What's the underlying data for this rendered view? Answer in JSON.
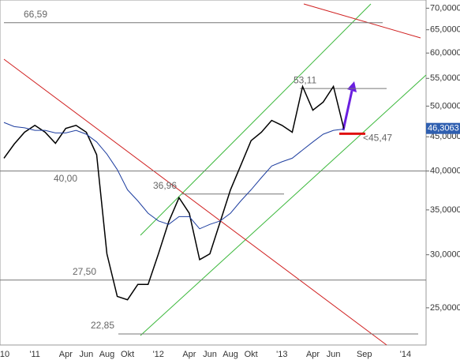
{
  "chart_data": {
    "type": "line",
    "categories": [
      "'10",
      null,
      null,
      "'11",
      null,
      null,
      "Apr",
      null,
      "Jun",
      null,
      "Aug",
      null,
      "Okt",
      null,
      null,
      "'12",
      null,
      null,
      "Apr",
      null,
      "Jun",
      null,
      "Aug",
      null,
      "Okt",
      null,
      null,
      "'13",
      null,
      null,
      "Apr",
      null,
      "Jun",
      null,
      null,
      "Sep",
      null,
      null,
      null,
      "'14"
    ],
    "series": [
      {
        "color": "#000000",
        "values": [
          41800,
          43900,
          45700,
          46800,
          45700,
          44000,
          46300,
          46800,
          45700,
          42300,
          30100,
          26000,
          25700,
          27100,
          27100,
          30100,
          33600,
          36500,
          34600,
          29500,
          30100,
          33600,
          37500,
          40800,
          44400,
          45700,
          47600,
          46800,
          45700,
          53500,
          49300,
          50700,
          53500,
          46300,
          null,
          null,
          null,
          null,
          null,
          null
        ]
      },
      {
        "color": "#1f3fa0",
        "values": [
          47270,
          46600,
          46400,
          46000,
          46000,
          45600,
          45600,
          46000,
          45400,
          44200,
          42400,
          40200,
          37500,
          36100,
          34600,
          33700,
          33300,
          34200,
          34200,
          32800,
          33300,
          33700,
          34600,
          36100,
          37500,
          39100,
          40700,
          41300,
          41800,
          43000,
          44200,
          45400,
          46000,
          46200,
          null,
          null,
          null,
          null,
          null,
          null
        ]
      }
    ],
    "log_scale": true,
    "ylim": [
      22000,
      72000
    ],
    "yticks": [
      {
        "value": 25000,
        "label": "25,0000"
      },
      {
        "value": 30000,
        "label": "30,0000"
      },
      {
        "value": 35000,
        "label": "35,0000"
      },
      {
        "value": 40000,
        "label": "40,0000"
      },
      {
        "value": 45000,
        "label": "45,0000"
      },
      {
        "value": 50000,
        "label": "50,0000"
      },
      {
        "value": 55000,
        "label": "55,0000"
      },
      {
        "value": 60000,
        "label": "60,0000"
      },
      {
        "value": 65000,
        "label": "65,0000"
      },
      {
        "value": 70000,
        "label": "70,0000"
      }
    ],
    "levels": [
      {
        "value": 66590,
        "label": "66,59"
      },
      {
        "value": 53110,
        "label": "53,11"
      },
      {
        "value": 40000,
        "label": "40,00"
      },
      {
        "value": 36960,
        "label": "36,96"
      },
      {
        "value": 27500,
        "label": "27,50"
      },
      {
        "value": 22850,
        "label": "22,85"
      }
    ],
    "support": {
      "value": 45470,
      "label": "<45,47"
    },
    "last_price": {
      "value": 46306.3,
      "label": "46,3063"
    }
  }
}
